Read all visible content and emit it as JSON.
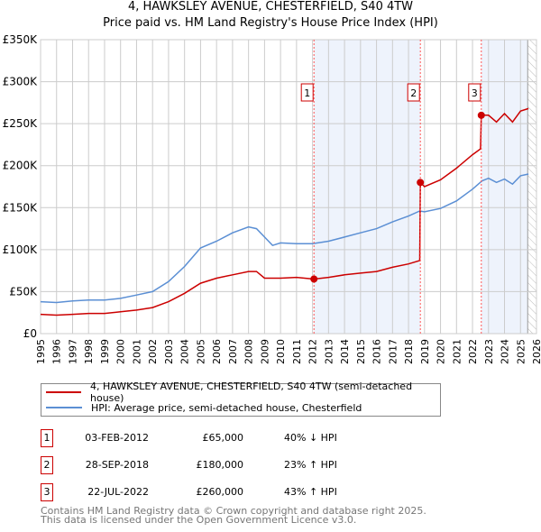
{
  "title_line1": "4, HAWKSLEY AVENUE, CHESTERFIELD, S40 4TW",
  "title_line2": "Price paid vs. HM Land Registry's House Price Index (HPI)",
  "chart_data": {
    "type": "line",
    "title": "4, HAWKSLEY AVENUE, CHESTERFIELD, S40 4TW — Price paid vs. HM Land Registry's House Price Index (HPI)",
    "xlim": [
      1995,
      2026
    ],
    "ylim": [
      0,
      350000
    ],
    "x_ticks": [
      1995,
      1996,
      1997,
      1998,
      1999,
      2000,
      2001,
      2002,
      2003,
      2004,
      2005,
      2006,
      2007,
      2008,
      2009,
      2010,
      2011,
      2012,
      2013,
      2014,
      2015,
      2016,
      2017,
      2018,
      2019,
      2020,
      2021,
      2022,
      2023,
      2024,
      2025,
      2026
    ],
    "y_ticks": [
      0,
      50000,
      100000,
      150000,
      200000,
      250000,
      300000,
      350000
    ],
    "y_tick_labels": [
      "£0",
      "£50K",
      "£100K",
      "£150K",
      "£200K",
      "£250K",
      "£300K",
      "£350K"
    ],
    "grid": true,
    "colors": {
      "property": "#cc0000",
      "hpi": "#5b8fd4",
      "shade": "#eef3fc"
    },
    "series": [
      {
        "name": "4, HAWKSLEY AVENUE, CHESTERFIELD, S40 4TW (semi-detached house)",
        "color": "#cc0000",
        "x": [
          1995,
          1996,
          1997,
          1998,
          1999,
          2000,
          2001,
          2002,
          2003,
          2004,
          2005,
          2006,
          2007,
          2008,
          2008.5,
          2009,
          2010,
          2011,
          2012.09,
          2013,
          2014,
          2015,
          2016,
          2017,
          2018,
          2018.7,
          2018.74,
          2019,
          2020,
          2021,
          2022,
          2022.5,
          2022.55,
          2023,
          2023.5,
          2024,
          2024.5,
          2025,
          2025.5
        ],
        "y": [
          23000,
          22000,
          23000,
          24000,
          24000,
          26000,
          28000,
          31000,
          38000,
          48000,
          60000,
          66000,
          70000,
          74000,
          74000,
          66000,
          66000,
          67000,
          65000,
          67000,
          70000,
          72000,
          74000,
          79000,
          83000,
          87000,
          180000,
          175000,
          183000,
          197000,
          213000,
          220000,
          260000,
          260000,
          252000,
          262000,
          252000,
          265000,
          268000
        ]
      },
      {
        "name": "HPI: Average price, semi-detached house, Chesterfield",
        "color": "#5b8fd4",
        "x": [
          1995,
          1996,
          1997,
          1998,
          1999,
          2000,
          2001,
          2002,
          2003,
          2004,
          2005,
          2006,
          2007,
          2008,
          2008.5,
          2009,
          2009.5,
          2010,
          2011,
          2012,
          2013,
          2014,
          2015,
          2016,
          2017,
          2018,
          2018.7,
          2019,
          2020,
          2021,
          2022,
          2022.6,
          2023,
          2023.5,
          2024,
          2024.5,
          2025,
          2025.5
        ],
        "y": [
          38000,
          37000,
          39000,
          40000,
          40000,
          42000,
          46000,
          50000,
          62000,
          80000,
          102000,
          110000,
          120000,
          127000,
          125000,
          115000,
          105000,
          108000,
          107000,
          107000,
          110000,
          115000,
          120000,
          125000,
          133000,
          140000,
          146000,
          145000,
          149000,
          158000,
          172000,
          182000,
          185000,
          180000,
          184000,
          178000,
          188000,
          190000
        ]
      }
    ],
    "sales": [
      {
        "label": "1",
        "x": 2012.09,
        "y": 65000
      },
      {
        "label": "2",
        "x": 2018.74,
        "y": 180000
      },
      {
        "label": "3",
        "x": 2022.55,
        "y": 260000
      }
    ],
    "shaded_ranges": [
      [
        2012.09,
        2018.74
      ],
      [
        2022.55,
        2025.45
      ]
    ],
    "hatched_from": 2025.45
  },
  "legend": {
    "property": "4, HAWKSLEY AVENUE, CHESTERFIELD, S40 4TW (semi-detached house)",
    "hpi": "HPI: Average price, semi-detached house, Chesterfield"
  },
  "transactions": [
    {
      "num": "1",
      "date": "03-FEB-2012",
      "price": "£65,000",
      "hpi": "40% ↓ HPI"
    },
    {
      "num": "2",
      "date": "28-SEP-2018",
      "price": "£180,000",
      "hpi": "23% ↑ HPI"
    },
    {
      "num": "3",
      "date": "22-JUL-2022",
      "price": "£260,000",
      "hpi": "43% ↑ HPI"
    }
  ],
  "footer": {
    "line1": "Contains HM Land Registry data © Crown copyright and database right 2025.",
    "line2": "This data is licensed under the Open Government Licence v3.0."
  }
}
